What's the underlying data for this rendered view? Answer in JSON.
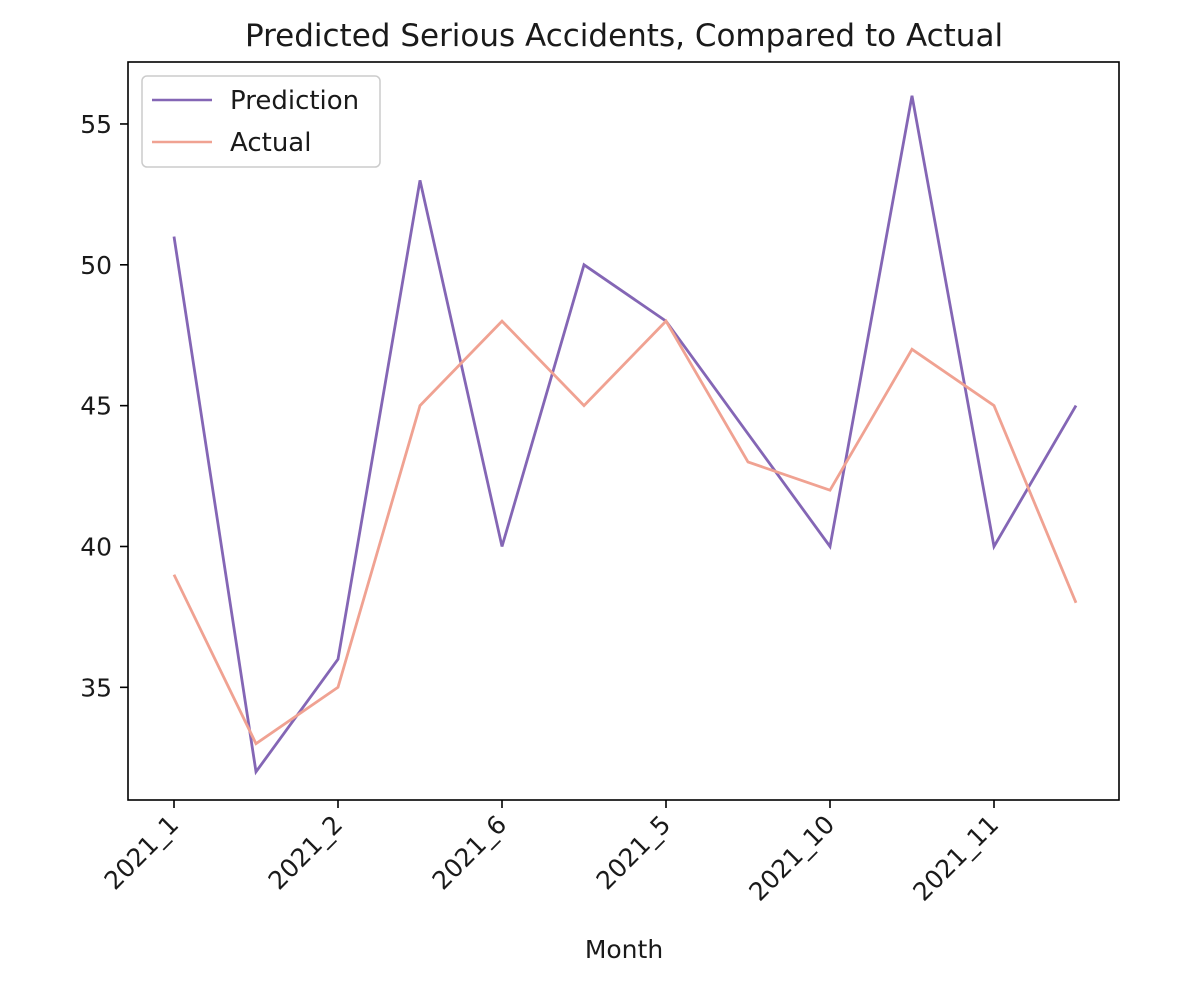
{
  "chart_data": {
    "type": "line",
    "title": "Predicted Serious Accidents, Compared to Actual",
    "xlabel": "Month",
    "ylabel": "",
    "categories": [
      "2021_1",
      "",
      "2021_2",
      "",
      "2021_6",
      "",
      "2021_5",
      "",
      "2021_10",
      "",
      "2021_11",
      ""
    ],
    "x_tick_labels": [
      "2021_1",
      "2021_2",
      "2021_6",
      "2021_5",
      "2021_10",
      "2021_11"
    ],
    "y_ticks": [
      35,
      40,
      45,
      50,
      55
    ],
    "ylim": [
      31.0,
      57.2
    ],
    "grid": false,
    "legend_position": "top-left",
    "series": [
      {
        "name": "Prediction",
        "color": "#8466b5",
        "values": [
          51,
          32,
          36,
          53,
          40,
          50,
          48,
          44,
          40,
          56,
          40,
          45
        ]
      },
      {
        "name": "Actual",
        "color": "#f0a292",
        "values": [
          39,
          33,
          35,
          45,
          48,
          45,
          48,
          43,
          42,
          47,
          45,
          38
        ]
      }
    ]
  }
}
